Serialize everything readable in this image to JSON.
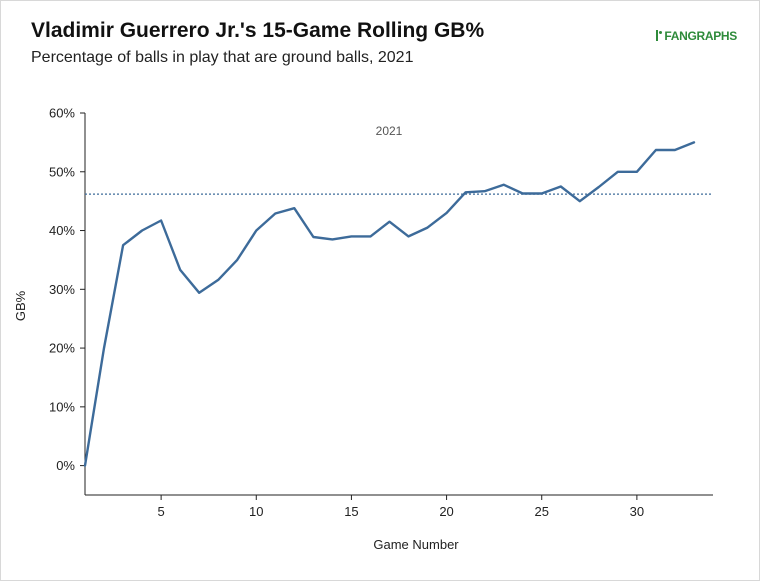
{
  "header": {
    "title": "Vladimir Guerrero Jr.'s 15-Game Rolling GB%",
    "subtitle": "Percentage of balls in play that are ground balls, 2021",
    "logo_text": "FANGRAPHS"
  },
  "colors": {
    "line": "#3d6b9a",
    "reference_line": "#3d6b9a",
    "logo": "#2e8b3a",
    "axis": "#222222"
  },
  "chart_data": {
    "type": "line",
    "title": "Vladimir Guerrero Jr.'s 15-Game Rolling GB%",
    "subtitle": "Percentage of balls in play that are ground balls, 2021",
    "xlabel": "Game Number",
    "ylabel": "GB%",
    "xlim": [
      1,
      34
    ],
    "ylim": [
      -5,
      60
    ],
    "x_ticks": [
      5,
      10,
      15,
      20,
      25,
      30
    ],
    "y_ticks": [
      0,
      10,
      20,
      30,
      40,
      50,
      60
    ],
    "y_tick_labels": [
      "0%",
      "10%",
      "20%",
      "30%",
      "40%",
      "50%",
      "60%"
    ],
    "grid": false,
    "annotation": "2021",
    "reference_line": {
      "y": 46.2,
      "style": "dotted"
    },
    "series": [
      {
        "x": [
          1,
          2,
          3,
          4,
          5,
          6,
          7,
          8,
          9,
          10,
          11,
          12,
          13,
          14,
          15,
          16,
          17,
          18,
          19,
          20,
          21,
          22,
          23,
          24,
          25,
          26,
          27,
          28,
          29,
          30,
          31,
          32,
          33
        ],
        "values": [
          0,
          20,
          37.5,
          40,
          41.7,
          33.3,
          29.4,
          31.6,
          35,
          40,
          42.9,
          43.8,
          38.9,
          38.5,
          39,
          39,
          41.5,
          39,
          40.5,
          43,
          46.5,
          46.7,
          47.8,
          46.3,
          46.3,
          47.5,
          45,
          47.4,
          50,
          50,
          53.7,
          53.7,
          55
        ]
      }
    ]
  }
}
